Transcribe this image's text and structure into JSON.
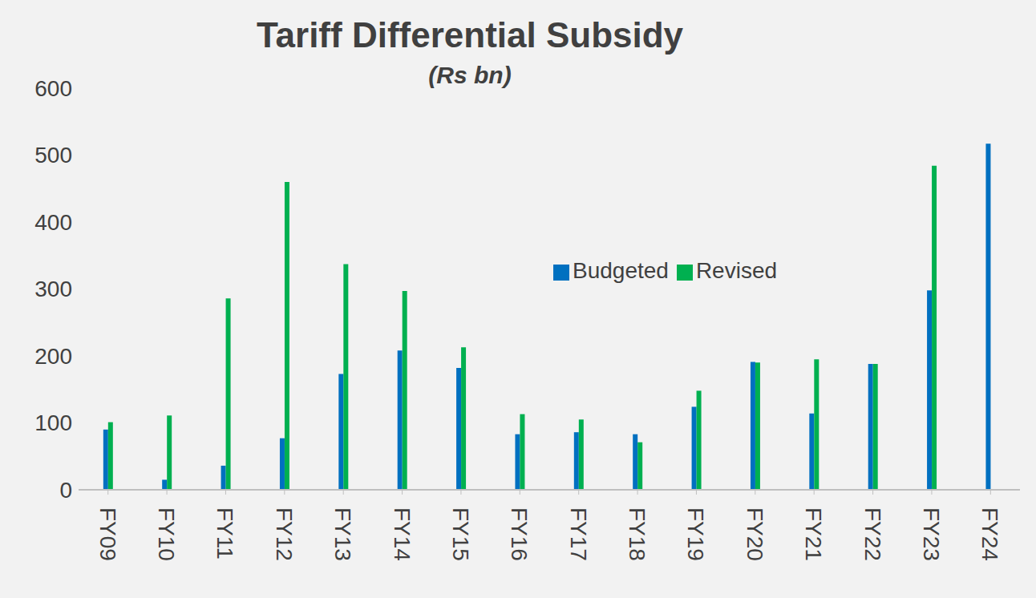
{
  "chart_data": {
    "type": "bar",
    "title": "Tariff Differential Subsidy",
    "subtitle": "(Rs bn)",
    "categories": [
      "FY09",
      "FY10",
      "FY11",
      "FY12",
      "FY13",
      "FY14",
      "FY15",
      "FY16",
      "FY17",
      "FY18",
      "FY19",
      "FY20",
      "FY21",
      "FY22",
      "FY23",
      "FY24"
    ],
    "series": [
      {
        "name": "Budgeted",
        "color": "#0070c0",
        "values": [
          90,
          15,
          36,
          77,
          173,
          208,
          182,
          83,
          86,
          83,
          124,
          191,
          114,
          188,
          298,
          517
        ]
      },
      {
        "name": "Revised",
        "color": "#00b050",
        "values": [
          101,
          111,
          286,
          460,
          337,
          297,
          213,
          113,
          105,
          71,
          148,
          190,
          195,
          188,
          484,
          null
        ]
      }
    ],
    "ylim": [
      0,
      600
    ],
    "yticks": [
      0,
      100,
      200,
      300,
      400,
      500,
      600
    ],
    "grid": false,
    "legend": "center"
  }
}
